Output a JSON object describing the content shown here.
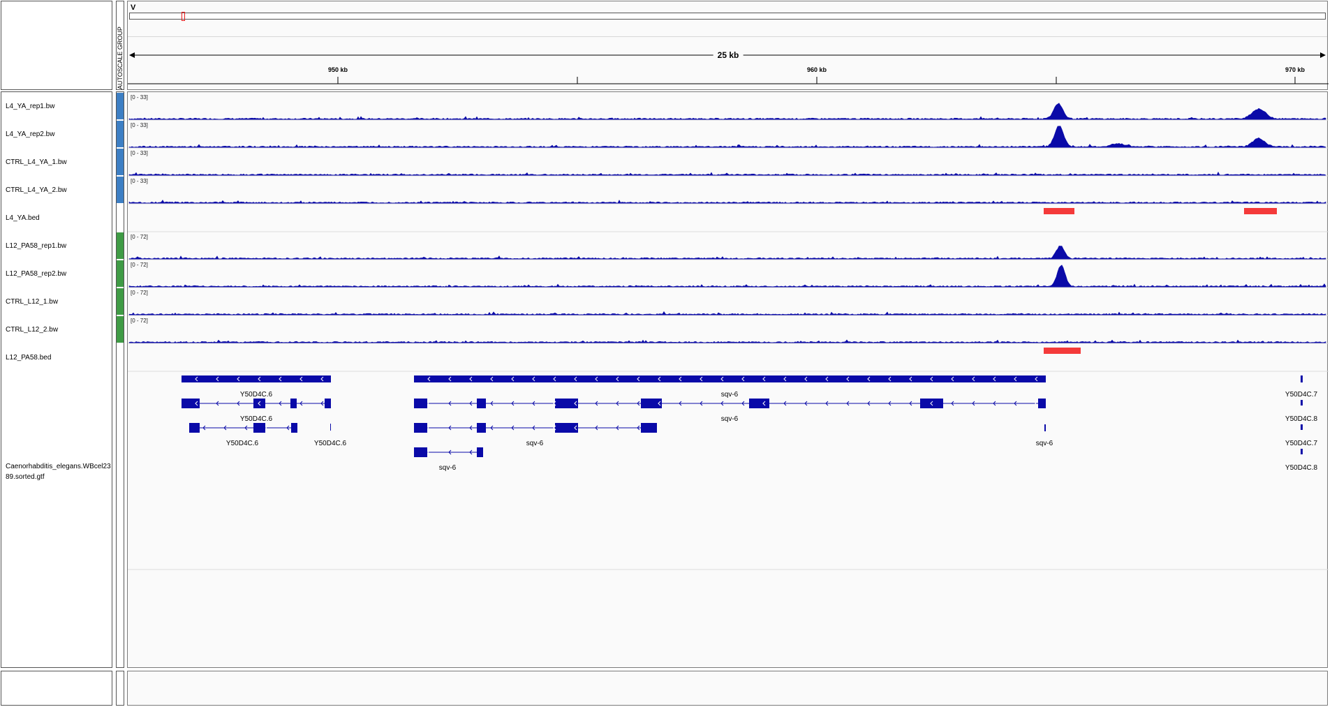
{
  "header": {
    "chromosome": "V",
    "span_label": "25 kb",
    "autoscale_label": "AUTOSCALE GROUP",
    "ticks": [
      "950 kb",
      "960 kb",
      "970 kb"
    ]
  },
  "tracks": [
    {
      "name": "L4_YA_rep1.bw",
      "range": "[0 - 33]",
      "group_color": "#3d7fc4",
      "type": "signal"
    },
    {
      "name": "L4_YA_rep2.bw",
      "range": "[0 - 33]",
      "group_color": "#3d7fc4",
      "type": "signal"
    },
    {
      "name": "CTRL_L4_YA_1.bw",
      "range": "[0 - 33]",
      "group_color": "#3d7fc4",
      "type": "signal"
    },
    {
      "name": "CTRL_L4_YA_2.bw",
      "range": "[0 - 33]",
      "group_color": "#3d7fc4",
      "type": "signal"
    },
    {
      "name": "L4_YA.bed",
      "range": "",
      "group_color": "",
      "type": "bed"
    },
    {
      "name": "L12_PA58_rep1.bw",
      "range": "[0 - 72]",
      "group_color": "#3f9b45",
      "type": "signal"
    },
    {
      "name": "L12_PA58_rep2.bw",
      "range": "[0 - 72]",
      "group_color": "#3f9b45",
      "type": "signal"
    },
    {
      "name": "CTRL_L12_1.bw",
      "range": "[0 - 72]",
      "group_color": "#3f9b45",
      "type": "signal"
    },
    {
      "name": "CTRL_L12_2.bw",
      "range": "[0 - 72]",
      "group_color": "#3f9b45",
      "type": "signal"
    },
    {
      "name": "L12_PA58.bed",
      "range": "",
      "group_color": "",
      "type": "bed"
    }
  ],
  "annotation_track": {
    "name": "Caenorhabditis_elegans.WBcel235.89.sorted.gtf",
    "name_line1": "Caenorhabditis_elegans.WBcel23",
    "name_line2": "89.sorted.gtf",
    "gene_labels": {
      "y50d4c6_a": "Y50D4C.6",
      "y50d4c6_b": "Y50D4C.6",
      "y50d4c6_c": "Y50D4C.6",
      "y50d4c6_d": "Y50D4C.6",
      "sqv6_a": "sqv-6",
      "sqv6_b": "sqv-6",
      "sqv6_c": "sqv-6",
      "sqv6_d": "sqv-6",
      "sqv6_e": "sqv-6",
      "y50d4c7_a": "Y50D4C.7",
      "y50d4c8_a": "Y50D4C.8",
      "y50d4c7_b": "Y50D4C.7",
      "y50d4c8_b": "Y50D4C.8"
    }
  },
  "colors": {
    "signal": "#0a0aa8",
    "bed": "#f43a3a",
    "gene": "#0a0aa8",
    "region_marker": "#e81c1c"
  }
}
